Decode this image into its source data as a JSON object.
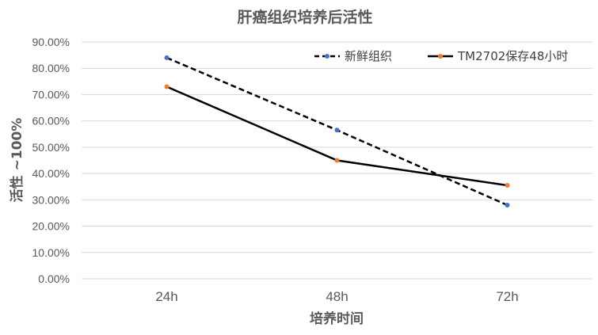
{
  "chart_data": {
    "type": "line",
    "title": "肝癌组织培养后活性",
    "xlabel": "培养时间",
    "ylabel": "活性 ~100%",
    "categories": [
      "24h",
      "48h",
      "72h"
    ],
    "y_ticks": [
      "0.00%",
      "10.00%",
      "20.00%",
      "30.00%",
      "40.00%",
      "50.00%",
      "60.00%",
      "70.00%",
      "80.00%",
      "90.00%"
    ],
    "ylim": [
      0,
      0.9
    ],
    "grid": true,
    "legend_position": "top-right",
    "series": [
      {
        "name": "新鲜组织",
        "values": [
          0.84,
          0.565,
          0.28
        ],
        "line_color": "#000000",
        "dash": true,
        "marker_color": "#4472C4"
      },
      {
        "name": "TM2702保存48小时",
        "values": [
          0.73,
          0.45,
          0.355
        ],
        "line_color": "#000000",
        "dash": false,
        "marker_color": "#ED7D31"
      }
    ]
  }
}
